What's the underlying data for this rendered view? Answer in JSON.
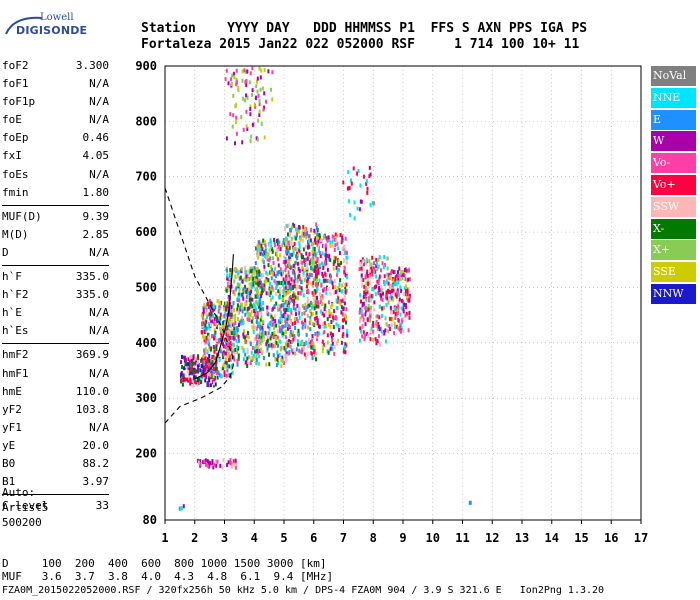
{
  "logo": {
    "line1": "Lowell",
    "line2": "DIGISONDE"
  },
  "header": {
    "line1": "Station    YYYY DAY   DDD HHMMSS P1  FFS S AXN PPS IGA PS",
    "line2": "Fortaleza 2015 Jan22 022 052000 RSF     1 714 100 10+ 11"
  },
  "params": [
    {
      "label": "foF2",
      "value": "3.300"
    },
    {
      "label": "foF1",
      "value": "N/A"
    },
    {
      "label": "foF1p",
      "value": "N/A"
    },
    {
      "label": "foE",
      "value": "N/A"
    },
    {
      "label": "foEp",
      "value": "0.46"
    },
    {
      "label": "fxI",
      "value": "4.05"
    },
    {
      "label": "foEs",
      "value": "N/A"
    },
    {
      "label": "fmin",
      "value": "1.80"
    },
    {
      "sep": true
    },
    {
      "label": "MUF(D)",
      "value": "9.39"
    },
    {
      "label": "M(D)",
      "value": "2.85"
    },
    {
      "label": "D",
      "value": "N/A"
    },
    {
      "sep": true
    },
    {
      "label": "h`F",
      "value": "335.0"
    },
    {
      "label": "h`F2",
      "value": "335.0"
    },
    {
      "label": "h`E",
      "value": "N/A"
    },
    {
      "label": "h`Es",
      "value": "N/A"
    },
    {
      "sep": true
    },
    {
      "label": "hmF2",
      "value": "369.9"
    },
    {
      "label": "hmF1",
      "value": "N/A"
    },
    {
      "label": "hmE",
      "value": "110.0"
    },
    {
      "label": "yF2",
      "value": "103.8"
    },
    {
      "label": "yF1",
      "value": "N/A"
    },
    {
      "label": "yE",
      "value": "20.0"
    },
    {
      "label": "B0",
      "value": "88.2"
    },
    {
      "label": "B1",
      "value": "3.97"
    },
    {
      "sep": true
    },
    {
      "label": "C-level",
      "value": "33"
    }
  ],
  "auto_lines": [
    "Auto:",
    "Artist5",
    "500200"
  ],
  "legend": [
    {
      "label": "NoVal",
      "color": "#808080"
    },
    {
      "label": "NNE",
      "color": "#00e5ff"
    },
    {
      "label": "E",
      "color": "#1e90ff"
    },
    {
      "label": "W",
      "color": "#aa00aa"
    },
    {
      "label": "Vo-",
      "color": "#ff3fa5"
    },
    {
      "label": "Vo+",
      "color": "#ff0040"
    },
    {
      "label": "SSW",
      "color": "#ffb6b6"
    },
    {
      "label": "X-",
      "color": "#007a00"
    },
    {
      "label": "X+",
      "color": "#88cc55"
    },
    {
      "label": "SSE",
      "color": "#cccc00"
    },
    {
      "label": "NNW",
      "color": "#1a1acc"
    }
  ],
  "scale": {
    "d_line": "D     100  200  400  600  800 1000 1500 3000 [km]",
    "muf_line": "MUF   3.6  3.7  3.8  4.0  4.3  4.8  6.1  9.4 [MHz]"
  },
  "footer": "FZA0M_2015022052000.RSF / 320fx256h 50 kHz 5.0 km / DPS-4 FZA0M 904 / 3.9 S 321.6 E   Ion2Png 1.3.20",
  "chart_data": {
    "type": "scatter",
    "title": "",
    "xlabel": "",
    "ylabel": "",
    "xlim": [
      1,
      17
    ],
    "ylim": [
      80,
      900
    ],
    "x_ticks": [
      1,
      2,
      3,
      4,
      5,
      6,
      7,
      8,
      9,
      10,
      11,
      12,
      13,
      14,
      15,
      16,
      17
    ],
    "y_ticks": [
      80,
      200,
      300,
      400,
      500,
      600,
      700,
      800,
      900
    ],
    "grid": "dotted",
    "legend_position": "right",
    "clusters": [
      {
        "x": [
          1.5,
          2.7
        ],
        "y": [
          325,
          380
        ],
        "n": 220,
        "colors": [
          "Vo+",
          "W",
          "NNW",
          "SSW",
          "X-"
        ]
      },
      {
        "x": [
          2.2,
          3.3
        ],
        "y": [
          340,
          480
        ],
        "n": 320,
        "colors": [
          "W",
          "Vo+",
          "SSE",
          "NNE",
          "E",
          "X-",
          "Vo-",
          "SSW"
        ]
      },
      {
        "x": [
          3.0,
          4.2
        ],
        "y": [
          360,
          540
        ],
        "n": 360,
        "colors": [
          "NNE",
          "E",
          "W",
          "Vo-",
          "SSE",
          "SSW",
          "X+",
          "X-"
        ]
      },
      {
        "x": [
          4.0,
          5.2
        ],
        "y": [
          360,
          590
        ],
        "n": 420,
        "colors": [
          "NNE",
          "E",
          "SSE",
          "X+",
          "Vo-",
          "SSW",
          "W",
          "X-"
        ]
      },
      {
        "x": [
          5.0,
          6.1
        ],
        "y": [
          370,
          620
        ],
        "n": 420,
        "colors": [
          "SSE",
          "X+",
          "Vo-",
          "W",
          "SSW",
          "NNE",
          "E",
          "X-",
          "Vo+"
        ]
      },
      {
        "x": [
          6.0,
          7.1
        ],
        "y": [
          380,
          600
        ],
        "n": 320,
        "colors": [
          "Vo+",
          "W",
          "SSE",
          "X-",
          "SSW",
          "Vo-",
          "NNE"
        ]
      },
      {
        "x": [
          7.5,
          8.5
        ],
        "y": [
          400,
          560
        ],
        "n": 220,
        "colors": [
          "Vo+",
          "W",
          "Vo-",
          "SSW",
          "NNE",
          "X+"
        ]
      },
      {
        "x": [
          8.5,
          9.2
        ],
        "y": [
          420,
          540
        ],
        "n": 150,
        "colors": [
          "SSW",
          "W",
          "Vo-",
          "Vo+",
          "SSE",
          "NNE"
        ]
      },
      {
        "x": [
          3.0,
          4.6
        ],
        "y": [
          760,
          900
        ],
        "n": 90,
        "colors": [
          "SSE",
          "X+",
          "Vo-",
          "W"
        ]
      },
      {
        "x": [
          2.0,
          3.4
        ],
        "y": [
          178,
          192
        ],
        "n": 40,
        "colors": [
          "Vo-",
          "SSW",
          "W"
        ]
      },
      {
        "x": [
          6.9,
          8.0
        ],
        "y": [
          620,
          720
        ],
        "n": 30,
        "colors": [
          "NNE",
          "W",
          "Vo+"
        ]
      },
      {
        "x": [
          1.4,
          1.6
        ],
        "y": [
          100,
          110
        ],
        "n": 4,
        "colors": [
          "NNE",
          "W"
        ]
      },
      {
        "x": [
          11.2,
          11.4
        ],
        "y": [
          110,
          118
        ],
        "n": 2,
        "colors": [
          "E"
        ]
      }
    ],
    "profile_curve": {
      "x": [
        2.0,
        2.4,
        2.7,
        2.9,
        3.05,
        3.15,
        3.2,
        3.25,
        3.3
      ],
      "y": [
        335,
        345,
        365,
        400,
        430,
        460,
        490,
        520,
        560
      ]
    },
    "profile_dashed": {
      "x": [
        1.0,
        1.5,
        2.0,
        2.5,
        2.9,
        3.1,
        3.25,
        3.3
      ],
      "y": [
        680,
        600,
        520,
        470,
        430,
        400,
        380,
        360
      ]
    },
    "bottom_dashed": {
      "x": [
        1.0,
        1.5,
        2.2,
        2.9,
        3.2,
        3.3
      ],
      "y": [
        255,
        285,
        300,
        320,
        340,
        360
      ]
    }
  }
}
